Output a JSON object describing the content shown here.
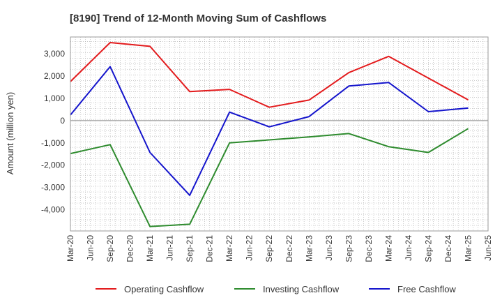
{
  "chart_data": {
    "type": "line",
    "title": "[8190]  Trend of 12-Month Moving Sum of Cashflows",
    "xlabel": "",
    "ylabel": "Amount (million yen)",
    "x": [
      "Mar-20",
      "Jun-20",
      "Sep-20",
      "Dec-20",
      "Mar-21",
      "Jun-21",
      "Sep-21",
      "Dec-21",
      "Mar-22",
      "Jun-22",
      "Sep-22",
      "Dec-22",
      "Mar-23",
      "Jun-23",
      "Sep-23",
      "Dec-23",
      "Mar-24",
      "Jun-24",
      "Sep-24",
      "Dec-24",
      "Mar-25",
      "Jun-25"
    ],
    "ylim": [
      -4950,
      3750
    ],
    "yticks": [
      3000,
      2000,
      1000,
      0,
      -1000,
      -2000,
      -3000,
      -4000
    ],
    "ytick_labels": [
      "3,000",
      "2,000",
      "1,000",
      "0",
      "-1,000",
      "-2,000",
      "-3,000",
      "-4,000"
    ],
    "grid": true,
    "legend_position": "bottom",
    "series": [
      {
        "name": "Operating Cashflow",
        "color": "#e31a1c",
        "points": [
          [
            "Mar-20",
            1750
          ],
          [
            "Sep-20",
            3500
          ],
          [
            "Mar-21",
            3330
          ],
          [
            "Sep-21",
            1300
          ],
          [
            "Mar-22",
            1400
          ],
          [
            "Sep-22",
            600
          ],
          [
            "Mar-23",
            920
          ],
          [
            "Sep-23",
            2150
          ],
          [
            "Mar-24",
            2880
          ],
          [
            "Mar-25",
            930
          ]
        ]
      },
      {
        "name": "Investing Cashflow",
        "color": "#2e8b2e",
        "points": [
          [
            "Mar-20",
            -1480
          ],
          [
            "Sep-20",
            -1080
          ],
          [
            "Mar-21",
            -4750
          ],
          [
            "Sep-21",
            -4650
          ],
          [
            "Mar-22",
            -1000
          ],
          [
            "Mar-23",
            -730
          ],
          [
            "Sep-23",
            -580
          ],
          [
            "Mar-24",
            -1170
          ],
          [
            "Sep-24",
            -1430
          ],
          [
            "Mar-25",
            -360
          ]
        ]
      },
      {
        "name": "Free Cashflow",
        "color": "#1414cc",
        "points": [
          [
            "Mar-20",
            250
          ],
          [
            "Sep-20",
            2420
          ],
          [
            "Mar-21",
            -1430
          ],
          [
            "Sep-21",
            -3350
          ],
          [
            "Mar-22",
            380
          ],
          [
            "Sep-22",
            -280
          ],
          [
            "Mar-23",
            180
          ],
          [
            "Sep-23",
            1550
          ],
          [
            "Mar-24",
            1710
          ],
          [
            "Sep-24",
            400
          ],
          [
            "Mar-25",
            560
          ]
        ]
      }
    ]
  }
}
